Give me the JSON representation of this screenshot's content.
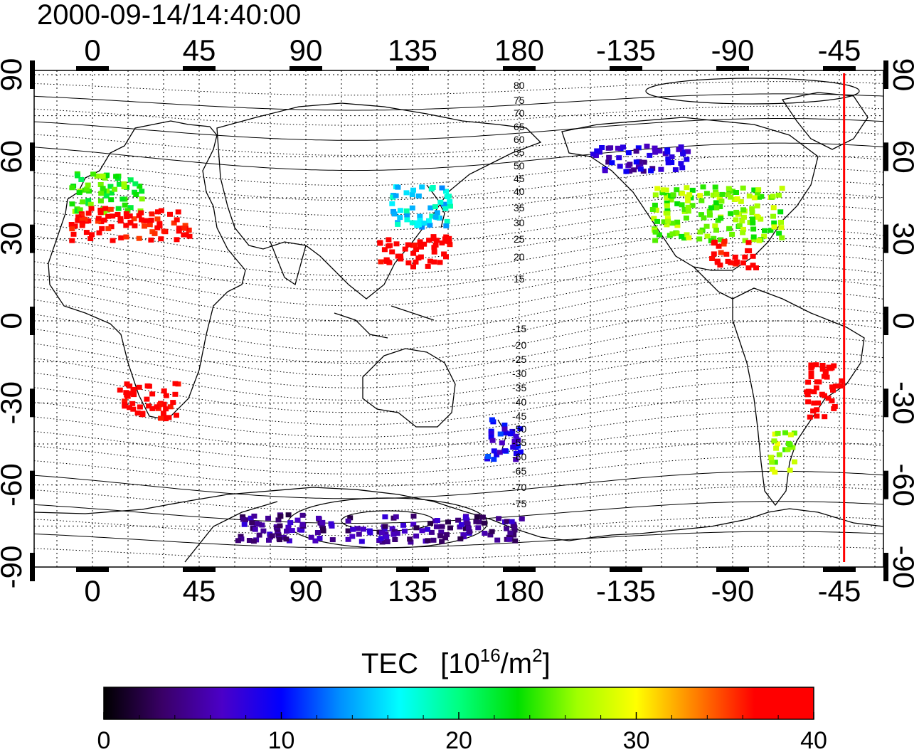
{
  "title": "2000-09-14/14:40:00",
  "map": {
    "top_lon_labels": [
      "0",
      "45",
      "90",
      "135",
      "180",
      "-135",
      "-90",
      "-45"
    ],
    "bottom_lon_labels": [
      "0",
      "45",
      "90",
      "135",
      "180",
      "-135",
      "-90",
      "-45"
    ],
    "left_lat_labels": [
      "90",
      "60",
      "30",
      "0",
      "-30",
      "-60",
      "-90"
    ],
    "right_lat_labels": [
      "90",
      "60",
      "30",
      "0",
      "-30",
      "-60",
      "-90"
    ],
    "lon_ticks_deg": [
      0,
      45,
      90,
      135,
      180,
      -135,
      -90,
      -45
    ],
    "lat_ticks_deg": [
      90,
      60,
      30,
      0,
      -30,
      -60,
      -90
    ],
    "contour_labels_north": [
      "80",
      "75",
      "70",
      "65",
      "60",
      "55",
      "50",
      "45",
      "40",
      "35",
      "30",
      "25",
      "20",
      "15"
    ],
    "contour_labels_south": [
      "-15",
      "-20",
      "-25",
      "-30",
      "-35",
      "-40",
      "-45",
      "-50",
      "-55",
      "-60",
      "-65",
      "-70",
      "-75"
    ],
    "terminator_longitude_deg": -43,
    "terminator_color": "#ff0000"
  },
  "colorbar": {
    "title": "TEC",
    "unit_main": "[10",
    "unit_sup1": "16",
    "unit_mid": "/m",
    "unit_sup2": "2",
    "unit_end": "]",
    "tick_labels": [
      "0",
      "10",
      "20",
      "30",
      "40"
    ],
    "min": 0,
    "max": 40,
    "stops": [
      "#000000",
      "#3a0068",
      "#4b00c8",
      "#0000ff",
      "#0090ff",
      "#00ffff",
      "#00ff80",
      "#00e000",
      "#a0ff00",
      "#ffff00",
      "#ff8000",
      "#ff0000",
      "#ff0000"
    ]
  },
  "chart_data": {
    "type": "heatmap",
    "title": "2000-09-14/14:40:00",
    "colorbar_label": "TEC [10^16/m^2]",
    "value_range": [
      0,
      40
    ],
    "regions": [
      {
        "lon_range": [
          -10,
          20
        ],
        "lat_range": [
          40,
          55
        ],
        "tec": 24
      },
      {
        "lon_range": [
          -10,
          40
        ],
        "lat_range": [
          30,
          42
        ],
        "tec": 38
      },
      {
        "lon_range": [
          10,
          35
        ],
        "lat_range": [
          -35,
          -22
        ],
        "tec": 39
      },
      {
        "lon_range": [
          120,
          150
        ],
        "lat_range": [
          20,
          32
        ],
        "tec": 39
      },
      {
        "lon_range": [
          125,
          150
        ],
        "lat_range": [
          35,
          50
        ],
        "tec": 16
      },
      {
        "lon_range": [
          -125,
          -70
        ],
        "lat_range": [
          30,
          50
        ],
        "tec": 26
      },
      {
        "lon_range": [
          -100,
          -80
        ],
        "lat_range": [
          20,
          30
        ],
        "tec": 38
      },
      {
        "lon_range": [
          -150,
          -110
        ],
        "lat_range": [
          55,
          65
        ],
        "tec": 7
      },
      {
        "lon_range": [
          -60,
          -45
        ],
        "lat_range": [
          -35,
          -15
        ],
        "tec": 40
      },
      {
        "lon_range": [
          -75,
          -65
        ],
        "lat_range": [
          -55,
          -40
        ],
        "tec": 27
      },
      {
        "lon_range": [
          165,
          180
        ],
        "lat_range": [
          -50,
          -35
        ],
        "tec": 9
      },
      {
        "lon_range": [
          60,
          180
        ],
        "lat_range": [
          -80,
          -70
        ],
        "tec": 5
      }
    ]
  }
}
